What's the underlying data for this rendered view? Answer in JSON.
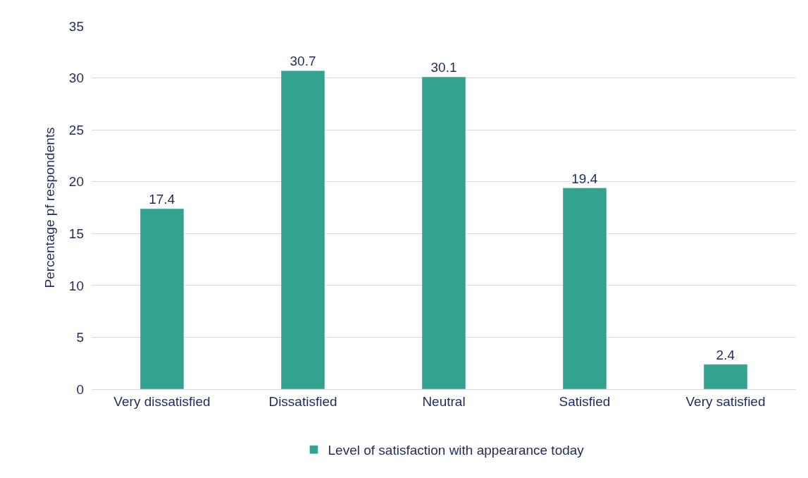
{
  "chart_data": {
    "type": "bar",
    "ylabel": "Percentage pf respondents",
    "categories": [
      "Very dissatisfied",
      "Dissatisfied",
      "Neutral",
      "Satisfied",
      "Very satisfied"
    ],
    "series": [
      {
        "name": "Level of satisfaction with appearance today",
        "color": "#33a38f",
        "values": [
          17.4,
          30.7,
          30.1,
          19.4,
          2.4
        ]
      }
    ],
    "ylim": [
      0,
      35
    ],
    "yticks": [
      0,
      5,
      10,
      15,
      20,
      25,
      30,
      35
    ],
    "grid": "y",
    "legend": "bottom",
    "data_labels": true
  }
}
